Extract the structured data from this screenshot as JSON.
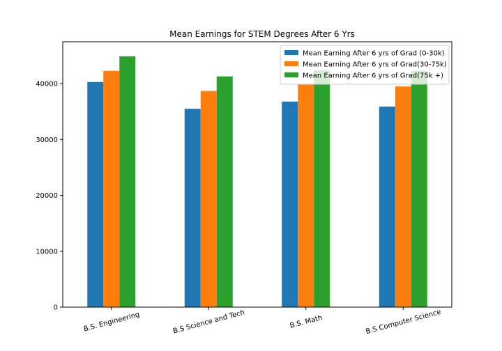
{
  "chart_data": {
    "type": "bar",
    "title": "Mean Earnings for STEM Degrees After 6 Yrs",
    "xlabel": "",
    "ylabel": "",
    "categories": [
      "B.S. Engineering",
      "B.S Science and Tech",
      "B.S. Math",
      "B.S Computer Science"
    ],
    "series": [
      {
        "name": "Mean Earning After 6 yrs of Grad (0-30k)",
        "color": "#1f77b4",
        "values": [
          40300,
          35500,
          36800,
          35900
        ]
      },
      {
        "name": "Mean Earning After 6 yrs of Grad(30-75k)",
        "color": "#ff7f0e",
        "values": [
          42300,
          38700,
          39900,
          39500
        ]
      },
      {
        "name": "Mean Earning After 6 yrs of Grad(75k +)",
        "color": "#2ca02c",
        "values": [
          44900,
          41300,
          42400,
          42300
        ]
      }
    ],
    "ylim": [
      0,
      47500
    ],
    "yticks": [
      0,
      10000,
      20000,
      30000,
      40000
    ],
    "x_tick_rotation_deg": 15,
    "legend_position": "top-right",
    "grid": false
  }
}
